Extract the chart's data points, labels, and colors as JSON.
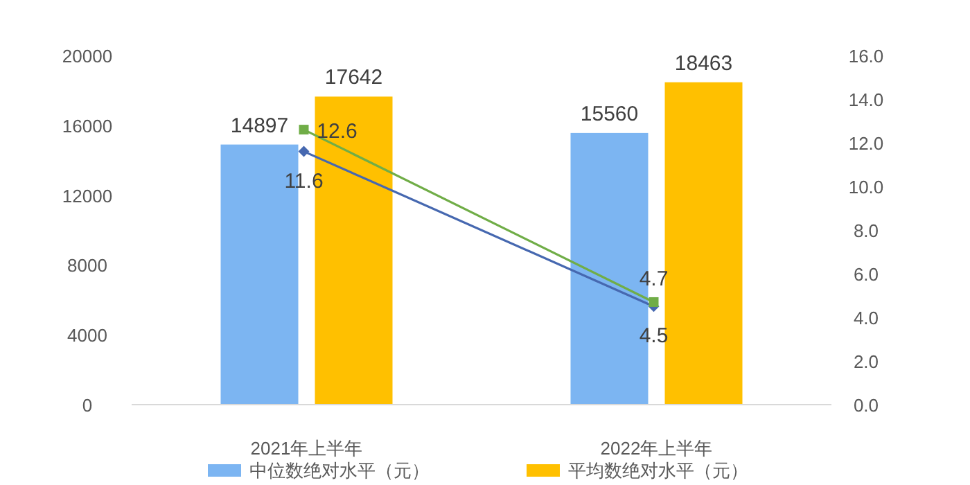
{
  "chart_data": {
    "type": "bar",
    "categories": [
      "2021年上半年",
      "2022年上半年"
    ],
    "series": [
      {
        "name": "中位数绝对水平（元）",
        "color": "#7cb5f2",
        "values": [
          14897,
          15560
        ]
      },
      {
        "name": "平均数绝对水平（元）",
        "color": "#ffc000",
        "values": [
          17642,
          18463
        ]
      },
      {
        "type": "line",
        "axis": "y2",
        "color": "#4668b0",
        "marker": "diamond",
        "values": [
          11.6,
          4.5
        ]
      },
      {
        "type": "line",
        "axis": "y2",
        "color": "#70ad47",
        "marker": "square",
        "values": [
          12.6,
          4.7
        ]
      }
    ],
    "ylim": [
      0,
      20000
    ],
    "yticks": [
      0,
      4000,
      8000,
      12000,
      16000,
      20000
    ],
    "y2lim": [
      0,
      16
    ],
    "y2ticks": [
      {
        "value": 0,
        "label": "0.0"
      },
      {
        "value": 2,
        "label": "2.0"
      },
      {
        "value": 4,
        "label": "4.0"
      },
      {
        "value": 6,
        "label": "6.0"
      },
      {
        "value": 8,
        "label": "8.0"
      },
      {
        "value": 10,
        "label": "10.0"
      },
      {
        "value": 12,
        "label": "12.0"
      },
      {
        "value": 14,
        "label": "14.0"
      },
      {
        "value": 16,
        "label": "16.0"
      }
    ],
    "data_labels": true,
    "legend": "bottom",
    "grid": false
  }
}
